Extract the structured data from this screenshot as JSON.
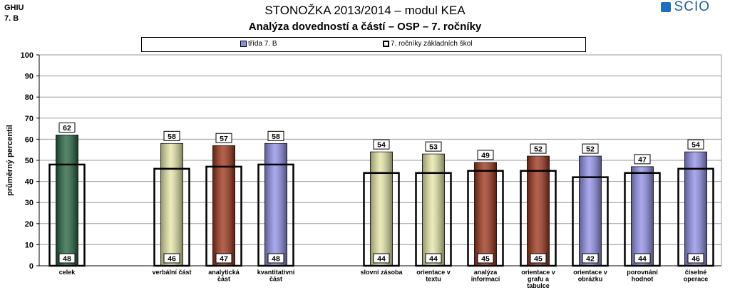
{
  "header": {
    "class_code": "GHIU",
    "class_name": "7. B",
    "title": "STONOŽKA 2013/2014 – modul KEA",
    "subtitle": "Analýza dovedností a částí – OSP – 7. ročníky",
    "logo_text": "SCIO"
  },
  "chart_data": {
    "type": "bar",
    "ylabel": "průměrný percentil",
    "ylim": [
      0,
      100
    ],
    "yticks": [
      0,
      10,
      20,
      30,
      40,
      50,
      60,
      70,
      80,
      90,
      100
    ],
    "grid": true,
    "legend_placement": "top",
    "categories": [
      "celek",
      "verbální část",
      "analytická část",
      "kvantitativní část",
      "slovní zásoba",
      "orientace v textu",
      "analýza informací",
      "orientace v grafu a tabulce",
      "orientace v obrázku",
      "porovnání hodnot",
      "číselné operace"
    ],
    "category_lines": [
      [
        "celek"
      ],
      [
        "verbální část"
      ],
      [
        "analytická",
        "část"
      ],
      [
        "kvantitativní",
        "část"
      ],
      [
        "slovní zásoba"
      ],
      [
        "orientace v",
        "textu"
      ],
      [
        "analýza",
        "informací"
      ],
      [
        "orientace v",
        "grafu a",
        "tabulce"
      ],
      [
        "orientace v",
        "obrázku"
      ],
      [
        "porovnání",
        "hodnot"
      ],
      [
        "číselné",
        "operace"
      ]
    ],
    "series": [
      {
        "name": "třída 7. B",
        "values": [
          62,
          58,
          57,
          58,
          54,
          53,
          49,
          52,
          52,
          47,
          54
        ],
        "colors": [
          "#1e5e3a",
          "#e4e4a4",
          "#9a2e14",
          "#8c8ce6",
          "#e4e4a4",
          "#e4e4a4",
          "#9a2e14",
          "#9a2e14",
          "#8c8ce6",
          "#8c8ce6",
          "#8c8ce6"
        ]
      },
      {
        "name": "7. ročníky základních škol",
        "values": [
          48,
          46,
          47,
          48,
          44,
          44,
          45,
          45,
          42,
          44,
          46
        ]
      }
    ]
  }
}
